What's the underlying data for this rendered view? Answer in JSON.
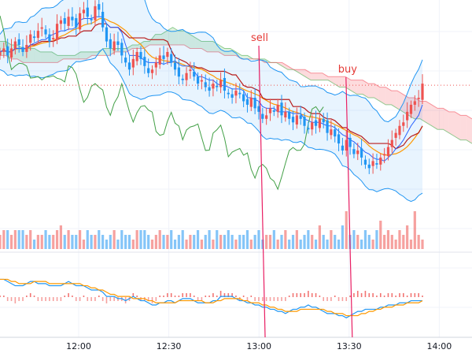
{
  "chart_data": {
    "type": "candlestick",
    "x_ticks": [
      "12:00",
      "12:30",
      "13:00",
      "13:30",
      "14:00"
    ],
    "annotations": [
      {
        "text": "sell",
        "time": "13:01"
      },
      {
        "text": "buy",
        "time": "13:30"
      }
    ],
    "price_close": [
      63,
      64,
      62,
      64,
      66,
      65,
      63,
      65,
      68,
      67,
      69,
      70,
      68,
      66,
      67,
      71,
      72,
      71,
      73,
      72,
      70,
      74,
      75,
      73,
      72,
      76,
      75,
      70,
      66,
      64,
      66,
      65,
      62,
      60,
      58,
      61,
      63,
      61,
      59,
      57,
      58,
      60,
      62,
      61,
      63,
      60,
      58,
      56,
      55,
      57,
      58,
      56,
      54,
      55,
      53,
      52,
      54,
      53,
      55,
      52,
      51,
      50,
      52,
      51,
      49,
      48,
      50,
      47,
      46,
      44,
      45,
      47,
      46,
      48,
      45,
      46,
      44,
      43,
      45,
      44,
      42,
      41,
      43,
      42,
      44,
      43,
      40,
      41,
      39,
      37,
      35,
      38,
      36,
      34,
      35,
      33,
      31,
      30,
      32,
      31,
      33,
      34,
      36,
      38,
      40,
      42,
      43,
      46,
      48,
      49,
      50,
      54
    ],
    "ichimoku": {
      "span_a": [
        66,
        66,
        65,
        65,
        64,
        64,
        64,
        63,
        63,
        63,
        62,
        62,
        62,
        62,
        63,
        63,
        63,
        63,
        64,
        64,
        64,
        64,
        64,
        65,
        65,
        66,
        66,
        68,
        68,
        69,
        70,
        69,
        69,
        68,
        67,
        66,
        66,
        66,
        65,
        64,
        64,
        63,
        62,
        62,
        61,
        61,
        61,
        60,
        60,
        59,
        58,
        58,
        57,
        56,
        55,
        55,
        55,
        55,
        54,
        53,
        53,
        52,
        51,
        51,
        50,
        50,
        49,
        48,
        48,
        47,
        46,
        45,
        44,
        44,
        43,
        42,
        41,
        41,
        40,
        39,
        38,
        38,
        37
      ],
      "span_b": [
        62,
        62,
        61,
        61,
        60,
        60,
        60,
        60,
        60,
        60,
        60,
        61,
        61,
        61,
        61,
        61,
        62,
        62,
        62,
        62,
        63,
        63,
        63,
        64,
        64,
        64,
        65,
        65,
        65,
        65,
        65,
        65,
        65,
        64,
        64,
        64,
        63,
        63,
        63,
        62,
        62,
        62,
        61,
        61,
        61,
        61,
        60,
        60,
        60,
        60,
        59,
        58,
        58,
        58,
        57,
        57,
        57,
        56,
        56,
        56,
        56,
        55,
        55,
        55,
        54,
        54,
        53,
        53,
        52,
        52,
        51,
        50,
        50,
        49,
        49,
        48,
        47,
        47,
        46,
        46,
        45,
        45,
        44
      ]
    },
    "volume": [
      3,
      4,
      4,
      3,
      4,
      4,
      4,
      3,
      4,
      2,
      3,
      3,
      4,
      3,
      3,
      4,
      5,
      3,
      4,
      3,
      3,
      4,
      2,
      4,
      3,
      3,
      4,
      3,
      2,
      3,
      4,
      2,
      4,
      3,
      3,
      2,
      4,
      4,
      4,
      3,
      2,
      3,
      4,
      3,
      3,
      4,
      2,
      3,
      4,
      2,
      3,
      3,
      4,
      2,
      3,
      4,
      2,
      4,
      3,
      3,
      4,
      3,
      2,
      3,
      3,
      4,
      2,
      3,
      4,
      2,
      3,
      3,
      4,
      2,
      3,
      4,
      2,
      3,
      4,
      2,
      3,
      4,
      3,
      2,
      5,
      3,
      2,
      4,
      3,
      2,
      5,
      8,
      3,
      4,
      3,
      2,
      4,
      3,
      2,
      4,
      6,
      3,
      4,
      3,
      2,
      4,
      3,
      5,
      2,
      8,
      3,
      2
    ],
    "macd": {
      "dif": [
        66,
        66,
        65,
        64,
        63,
        63,
        63,
        64,
        65,
        65,
        64,
        64,
        64,
        63,
        63,
        63,
        63,
        64,
        65,
        64,
        63,
        63,
        63,
        62,
        61,
        61,
        61,
        60,
        58,
        58,
        58,
        57,
        57,
        56,
        57,
        58,
        57,
        56,
        56,
        55,
        54,
        54,
        55,
        55,
        56,
        56,
        55,
        56,
        57,
        57,
        57,
        56,
        55,
        55,
        55,
        55,
        56,
        56,
        58,
        58,
        58,
        58,
        57,
        56,
        56,
        55,
        55,
        54,
        54,
        53,
        53,
        52,
        52,
        51,
        51,
        50,
        51,
        52,
        52,
        53,
        53,
        54,
        53,
        53,
        52,
        51,
        50,
        50,
        50,
        49,
        49,
        48,
        49,
        50,
        51,
        51,
        52,
        52,
        52,
        52,
        53,
        53,
        54,
        54,
        54,
        55,
        55,
        55,
        56,
        56,
        56,
        56
      ],
      "dea": [
        66,
        66,
        66,
        65,
        65,
        64,
        64,
        64,
        64,
        65,
        65,
        65,
        65,
        64,
        64,
        64,
        64,
        64,
        64,
        64,
        64,
        64,
        63,
        63,
        62,
        62,
        61,
        61,
        60,
        59,
        59,
        58,
        58,
        58,
        58,
        57,
        57,
        57,
        57,
        56,
        56,
        55,
        55,
        55,
        55,
        55,
        55,
        56,
        56,
        56,
        56,
        56,
        56,
        56,
        55,
        55,
        55,
        56,
        56,
        57,
        57,
        57,
        57,
        57,
        56,
        56,
        55,
        55,
        55,
        54,
        54,
        53,
        53,
        52,
        52,
        51,
        51,
        51,
        51,
        52,
        52,
        52,
        52,
        52,
        52,
        52,
        51,
        51,
        50,
        50,
        50,
        49,
        49,
        49,
        49,
        50,
        50,
        51,
        51,
        52,
        52,
        53,
        53,
        53,
        54,
        54,
        54,
        55,
        55,
        55,
        55,
        56
      ]
    }
  }
}
